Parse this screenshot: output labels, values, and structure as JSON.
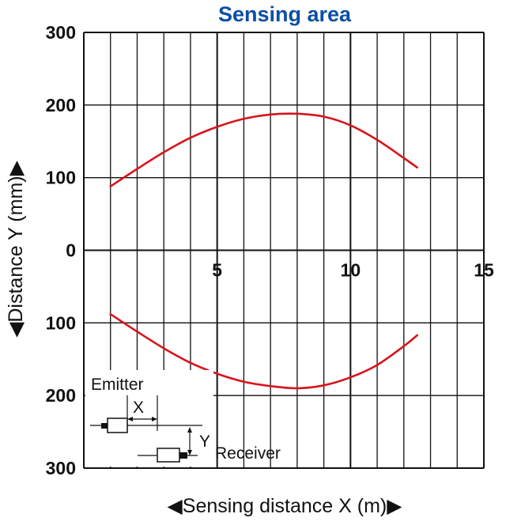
{
  "chart_data": {
    "type": "line",
    "title": "Sensing area",
    "xlabel": "◀Sensing distance X (m)▶",
    "ylabel": "◀Distance Y (mm)▶",
    "xlim": [
      0,
      15
    ],
    "ylim": [
      -300,
      300
    ],
    "x_ticks": [
      "5",
      "10",
      "15"
    ],
    "y_ticks": [
      "300",
      "200",
      "100",
      "0",
      "100",
      "200",
      "300"
    ],
    "grid": true,
    "series": [
      {
        "x": [
          1,
          2,
          3,
          4,
          5,
          6,
          7,
          8,
          9,
          10,
          11,
          12,
          12.5
        ],
        "y": [
          88,
          112,
          135,
          155,
          170,
          181,
          187,
          188,
          184,
          172,
          152,
          127,
          114
        ]
      },
      {
        "x": [
          1,
          2,
          3,
          4,
          5,
          6,
          7,
          8,
          9,
          10,
          11,
          12,
          12.5
        ],
        "y": [
          -88,
          -112,
          -135,
          -155,
          -170,
          -181,
          -187,
          -190,
          -186,
          -175,
          -158,
          -132,
          -117
        ]
      }
    ],
    "colors": {
      "curve": "#d7141c",
      "title": "#0b4fa3",
      "grid": "#111111"
    },
    "inset": {
      "emitter_label": "Emitter",
      "receiver_label": "Receiver",
      "x_label": "X",
      "y_label": "Y"
    }
  }
}
